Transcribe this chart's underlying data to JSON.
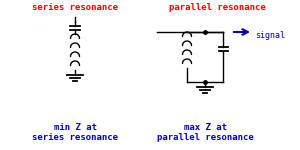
{
  "title_left": "series resonance",
  "title_right": "parallel resonance",
  "label_left_line1": "min Z at",
  "label_left_line2": "series resonance",
  "label_right_line1": "max Z at",
  "label_right_line2": "parallel resonance",
  "signal_label": "signal",
  "title_color": "#ff0000",
  "label_color": "#0000cc",
  "line_color": "#000000",
  "arrow_color": "#0000aa",
  "bg_color": "#ffffff",
  "figsize": [
    3.0,
    1.5
  ],
  "dpi": 100
}
